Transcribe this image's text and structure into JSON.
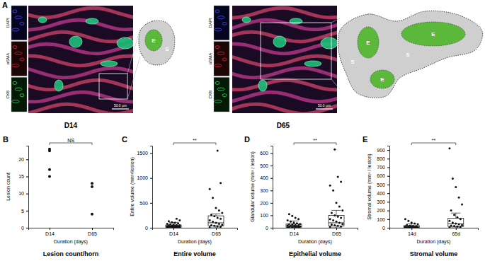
{
  "panel_a": {
    "panel": "A",
    "images": [
      {
        "label": "D14",
        "channels": [
          "DAPI",
          "αSMA",
          "CK8"
        ],
        "scale_bar": "50.0 μm",
        "regions": [
          "E",
          "S"
        ]
      },
      {
        "label": "D65",
        "channels": [
          "DAPI",
          "αSMA",
          "CK8"
        ],
        "scale_bar": "50.0 μm",
        "regions": [
          "E",
          "E",
          "E",
          "S",
          "S"
        ]
      }
    ]
  },
  "chart_data": [
    {
      "panel": "B",
      "type": "strip",
      "title": "Lesion count/horn",
      "x_label": "Duration (days)",
      "y_label": "Lesion count",
      "categories": [
        "D14",
        "D65"
      ],
      "points": [
        [
          23,
          22.5,
          17,
          15
        ],
        [
          13,
          12,
          4
        ]
      ],
      "ylim": [
        0,
        24
      ],
      "yticks": [
        0,
        5,
        10,
        15,
        20
      ],
      "significance": "NS"
    },
    {
      "panel": "C",
      "type": "box",
      "title": "Entire volume",
      "x_label": "Duration (days)",
      "y_label": "Entire volume (mm³/lesion)",
      "categories": [
        "D14",
        "D65"
      ],
      "points": [
        [
          5,
          8,
          10,
          12,
          15,
          18,
          20,
          22,
          25,
          28,
          30,
          35,
          40,
          45,
          50,
          55,
          60,
          70,
          80,
          90,
          100,
          110,
          130,
          150,
          180
        ],
        [
          10,
          20,
          30,
          40,
          50,
          60,
          80,
          100,
          120,
          150,
          180,
          200,
          230,
          260,
          300,
          350,
          400,
          600,
          780,
          900,
          1550
        ]
      ],
      "boxes": [
        {
          "q1": 10,
          "median": 25,
          "q3": 55,
          "whisker_low": 0,
          "whisker_high": 110
        },
        {
          "q1": 40,
          "median": 100,
          "q3": 240,
          "whisker_low": 0,
          "whisker_high": 280
        }
      ],
      "ylim": [
        0,
        1650
      ],
      "yticks": [
        0,
        500,
        1000,
        1500
      ],
      "significance": "**"
    },
    {
      "panel": "D",
      "type": "box",
      "title": "Epithelial volume",
      "x_label": "Duration (days)",
      "y_label": "Glandular volume (mm³ / lesion)",
      "categories": [
        "D14",
        "D65"
      ],
      "points": [
        [
          2,
          4,
          5,
          6,
          8,
          10,
          12,
          14,
          16,
          18,
          20,
          22,
          25,
          28,
          30,
          35,
          40,
          50,
          60,
          70,
          80,
          95,
          110
        ],
        [
          5,
          10,
          15,
          20,
          25,
          30,
          40,
          50,
          60,
          70,
          80,
          90,
          100,
          120,
          140,
          170,
          200,
          300,
          340,
          370,
          410,
          630
        ]
      ],
      "boxes": [
        {
          "q1": 5,
          "median": 12,
          "q3": 30,
          "whisker_low": 0,
          "whisker_high": 55
        },
        {
          "q1": 15,
          "median": 40,
          "q3": 100,
          "whisker_low": 0,
          "whisker_high": 140
        }
      ],
      "ylim": [
        0,
        660
      ],
      "yticks": [
        0,
        100,
        200,
        300,
        400,
        500,
        600
      ],
      "significance": "**"
    },
    {
      "panel": "E",
      "type": "box",
      "title": "Stromal volume",
      "x_label": "Duration (days)",
      "y_label": "Stromal volume (mm³ / lesion)",
      "categories": [
        "14d",
        "65d"
      ],
      "points": [
        [
          1,
          2,
          3,
          4,
          5,
          6,
          8,
          10,
          12,
          15,
          18,
          20,
          25,
          30,
          40,
          50,
          60,
          80,
          100
        ],
        [
          5,
          10,
          15,
          20,
          25,
          30,
          40,
          50,
          60,
          80,
          100,
          120,
          150,
          200,
          270,
          350,
          470,
          570,
          920
        ]
      ],
      "boxes": [
        {
          "q1": 3,
          "median": 8,
          "q3": 25,
          "whisker_low": 0,
          "whisker_high": 45
        },
        {
          "q1": 15,
          "median": 45,
          "q3": 110,
          "whisker_low": 0,
          "whisker_high": 170
        }
      ],
      "ylim": [
        0,
        950
      ],
      "yticks": [
        0,
        100,
        200,
        300,
        400,
        500,
        600,
        700,
        800,
        900
      ],
      "significance": "**"
    }
  ]
}
